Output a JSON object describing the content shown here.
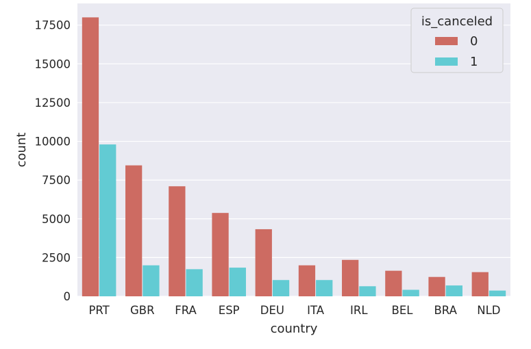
{
  "chart_data": {
    "type": "bar",
    "title": "",
    "xlabel": "country",
    "ylabel": "count",
    "categories": [
      "PRT",
      "GBR",
      "FRA",
      "ESP",
      "DEU",
      "ITA",
      "IRL",
      "BEL",
      "BRA",
      "NLD"
    ],
    "series": [
      {
        "name": "0",
        "color": "#cd6b62",
        "values": [
          18000,
          8450,
          7100,
          5380,
          4330,
          2000,
          2350,
          1650,
          1250,
          1560
        ]
      },
      {
        "name": "1",
        "color": "#62cbd3",
        "values": [
          9800,
          2000,
          1750,
          1850,
          1050,
          1050,
          650,
          420,
          700,
          370
        ]
      }
    ],
    "ylim": [
      0,
      18900
    ],
    "yticks": [
      0,
      2500,
      5000,
      7500,
      10000,
      12500,
      15000,
      17500
    ],
    "grid": true,
    "plot_background": "#eaeaf2",
    "legend": {
      "title": "is_canceled",
      "placement": "top-right"
    }
  }
}
